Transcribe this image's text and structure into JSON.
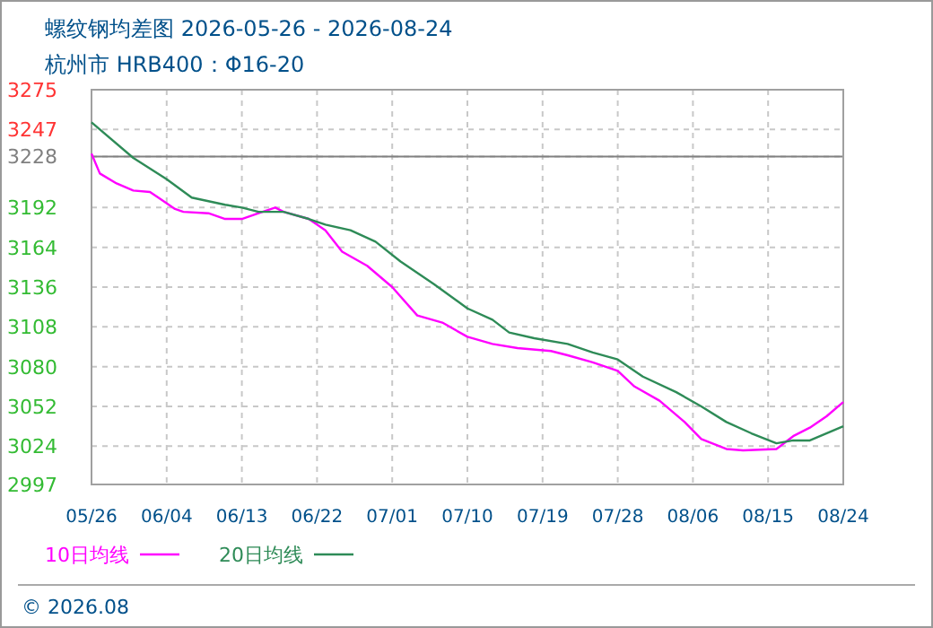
{
  "chart_data": {
    "type": "line",
    "title": "螺纹钢均差图 2026-05-26 - 2026-08-24",
    "subtitle": "杭州市  HRB400：Φ16-20",
    "annotations": [
      "© 2026.08"
    ],
    "xlim": [
      "2026-05-26",
      "2026-08-24"
    ],
    "xticks": [
      {
        "value": "2026-05-26",
        "label": "05/26"
      },
      {
        "value": "2026-06-04",
        "label": "06/04"
      },
      {
        "value": "2026-06-13",
        "label": "06/13"
      },
      {
        "value": "2026-06-22",
        "label": "06/22"
      },
      {
        "value": "2026-07-01",
        "label": "07/01"
      },
      {
        "value": "2026-07-10",
        "label": "07/10"
      },
      {
        "value": "2026-07-19",
        "label": "07/19"
      },
      {
        "value": "2026-07-28",
        "label": "07/28"
      },
      {
        "value": "2026-08-06",
        "label": "08/06"
      },
      {
        "value": "2026-08-15",
        "label": "08/15"
      },
      {
        "value": "2026-08-24",
        "label": "08/24"
      }
    ],
    "ylim": [
      2997,
      3275
    ],
    "yticks": [
      2997,
      3024,
      3052,
      3080,
      3108,
      3136,
      3164,
      3192,
      3228,
      3247,
      3275
    ],
    "ref_lines": [
      {
        "axis": "y",
        "value": 3228,
        "color": "#808080"
      }
    ],
    "grid": true,
    "legend": "bottom left",
    "marker": "none",
    "line_style": "solid",
    "series": [
      {
        "name": "10日均线",
        "color": "#ff00ff",
        "x": [
          "2026-05-26",
          "2026-05-27",
          "2026-05-29",
          "2026-05-31",
          "2026-06-02",
          "2026-06-03",
          "2026-06-05",
          "2026-06-06",
          "2026-06-09",
          "2026-06-11",
          "2026-06-13",
          "2026-06-15",
          "2026-06-17",
          "2026-06-18",
          "2026-06-21",
          "2026-06-23",
          "2026-06-25",
          "2026-06-28",
          "2026-07-01",
          "2026-07-04",
          "2026-07-07",
          "2026-07-10",
          "2026-07-13",
          "2026-07-16",
          "2026-07-20",
          "2026-07-22",
          "2026-07-25",
          "2026-07-28",
          "2026-07-30",
          "2026-08-02",
          "2026-08-05",
          "2026-08-07",
          "2026-08-10",
          "2026-08-12",
          "2026-08-16",
          "2026-08-18",
          "2026-08-20",
          "2026-08-22",
          "2026-08-24"
        ],
        "values": [
          3230,
          3216,
          3209,
          3204,
          3203,
          3199,
          3191,
          3189,
          3188,
          3184,
          3184,
          3188,
          3192,
          3189,
          3184,
          3176,
          3161,
          3151,
          3136,
          3116,
          3111,
          3101,
          3096,
          3093,
          3091,
          3088,
          3083,
          3077,
          3066,
          3056,
          3041,
          3029,
          3022,
          3021,
          3022,
          3031,
          3037,
          3045,
          3055
        ]
      },
      {
        "name": "20日均线",
        "color": "#2e8b57",
        "x": [
          "2026-05-26",
          "2026-05-31",
          "2026-06-04",
          "2026-06-07",
          "2026-06-11",
          "2026-06-13",
          "2026-06-15",
          "2026-06-18",
          "2026-06-21",
          "2026-06-23",
          "2026-06-26",
          "2026-06-29",
          "2026-07-02",
          "2026-07-06",
          "2026-07-10",
          "2026-07-13",
          "2026-07-15",
          "2026-07-18",
          "2026-07-22",
          "2026-07-25",
          "2026-07-28",
          "2026-07-31",
          "2026-08-04",
          "2026-08-07",
          "2026-08-10",
          "2026-08-13",
          "2026-08-16",
          "2026-08-18",
          "2026-08-20",
          "2026-08-24"
        ],
        "values": [
          3252,
          3227,
          3212,
          3199,
          3194,
          3192,
          3189,
          3189,
          3184,
          3180,
          3176,
          3168,
          3154,
          3138,
          3121,
          3113,
          3104,
          3100,
          3096,
          3090,
          3085,
          3073,
          3062,
          3052,
          3041,
          3033,
          3026,
          3028,
          3028,
          3038
        ]
      }
    ]
  }
}
